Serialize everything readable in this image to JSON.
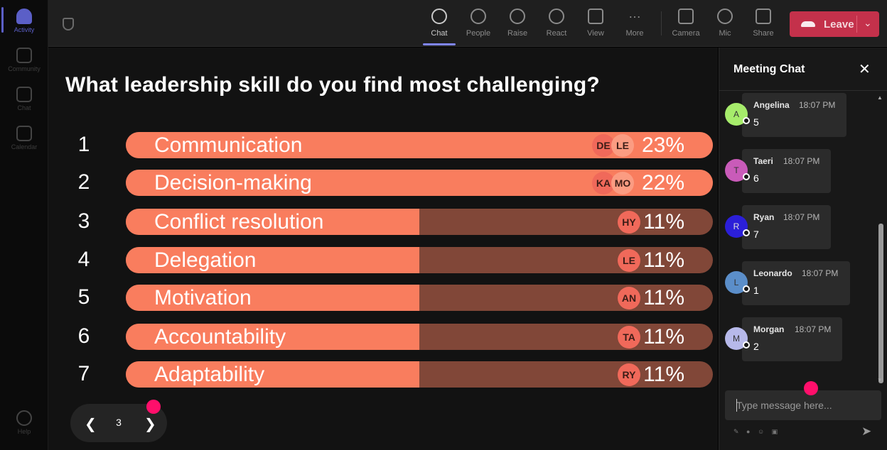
{
  "rail": {
    "items": [
      {
        "label": "Activity",
        "active": true
      },
      {
        "label": "Community",
        "active": false
      },
      {
        "label": "Chat",
        "active": false
      },
      {
        "label": "Calendar",
        "active": false
      }
    ],
    "help_label": "Help"
  },
  "toolbar": {
    "items": [
      {
        "label": "Chat",
        "icon": "chat-bubble-icon",
        "active": true
      },
      {
        "label": "People",
        "icon": "person-icon",
        "active": false
      },
      {
        "label": "Raise",
        "icon": "hand-icon",
        "active": false
      },
      {
        "label": "React",
        "icon": "smiley-icon",
        "active": false
      },
      {
        "label": "View",
        "icon": "grid-icon",
        "active": false
      },
      {
        "label": "More",
        "icon": "more-dots-icon",
        "active": false
      },
      {
        "label": "Camera",
        "icon": "camera-off-icon",
        "active": false
      },
      {
        "label": "Mic",
        "icon": "mic-icon",
        "active": false
      },
      {
        "label": "Share",
        "icon": "share-screen-icon",
        "active": false
      }
    ],
    "leave_label": "Leave"
  },
  "poll": {
    "question": "What leadership skill do you find most challenging?",
    "options": [
      {
        "num": "1",
        "label": "Communication",
        "percent_text": "23%",
        "fill": 1.0,
        "avatars": [
          "DE",
          "LE"
        ]
      },
      {
        "num": "2",
        "label": "Decision-making",
        "percent_text": "22%",
        "fill": 1.0,
        "avatars": [
          "KA",
          "MO"
        ]
      },
      {
        "num": "3",
        "label": "Conflict resolution",
        "percent_text": "11%",
        "fill": 0.5,
        "avatars": [
          "HY"
        ]
      },
      {
        "num": "4",
        "label": "Delegation",
        "percent_text": "11%",
        "fill": 0.5,
        "avatars": [
          "LE"
        ]
      },
      {
        "num": "5",
        "label": "Motivation",
        "percent_text": "11%",
        "fill": 0.5,
        "avatars": [
          "AN"
        ]
      },
      {
        "num": "6",
        "label": "Accountability",
        "percent_text": "11%",
        "fill": 0.5,
        "avatars": [
          "TA"
        ]
      },
      {
        "num": "7",
        "label": "Adaptability",
        "percent_text": "11%",
        "fill": 0.5,
        "avatars": [
          "RY"
        ]
      }
    ],
    "page": "3"
  },
  "chat": {
    "title": "Meeting Chat",
    "messages": [
      {
        "initial": "A",
        "name": "Angelina",
        "time": "18:07 PM",
        "text": "5",
        "color": "#a6ec6b"
      },
      {
        "initial": "T",
        "name": "Taeri",
        "time": "18:07 PM",
        "text": "6",
        "color": "#c95bb9"
      },
      {
        "initial": "R",
        "name": "Ryan",
        "time": "18:07 PM",
        "text": "7",
        "color": "#2b1fd8"
      },
      {
        "initial": "L",
        "name": "Leonardo",
        "time": "18:07 PM",
        "text": "1",
        "color": "#5b8ec9"
      },
      {
        "initial": "M",
        "name": "Morgan",
        "time": "18:07 PM",
        "text": "2",
        "color": "#b7b9ea"
      }
    ],
    "input_placeholder": "Type message here..."
  },
  "colors": {
    "bar_fill": "#f97d5e",
    "bar_track": "#814738",
    "leave": "#c4314b",
    "accent": "#7f85f5",
    "marker": "#ff0f6b"
  }
}
